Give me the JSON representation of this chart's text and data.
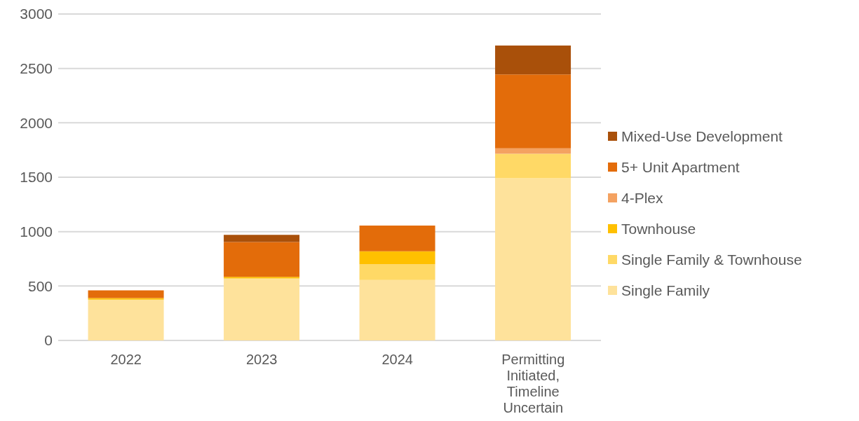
{
  "chart_data": {
    "type": "bar",
    "stacked": true,
    "categories": [
      "2022",
      "2023",
      "2024",
      "Permitting Initiated, Timeline Uncertain"
    ],
    "series": [
      {
        "name": "Single Family",
        "color": "#fee29b",
        "values": [
          375,
          570,
          555,
          1490
        ]
      },
      {
        "name": "Single Family & Townhouse",
        "color": "#ffd966",
        "values": [
          0,
          0,
          145,
          225
        ]
      },
      {
        "name": "Townhouse",
        "color": "#ffc000",
        "values": [
          15,
          15,
          120,
          0
        ]
      },
      {
        "name": "4-Plex",
        "color": "#f4a261",
        "values": [
          0,
          0,
          0,
          50
        ]
      },
      {
        "name": "5+ Unit Apartment",
        "color": "#e36c0a",
        "values": [
          70,
          320,
          235,
          680
        ]
      },
      {
        "name": "Mixed-Use Development",
        "color": "#a9500a",
        "values": [
          0,
          65,
          0,
          265
        ]
      }
    ],
    "ylim": [
      0,
      3000
    ],
    "yticks": [
      0,
      500,
      1000,
      1500,
      2000,
      2500,
      3000
    ],
    "grid": "y",
    "legend": "right"
  }
}
